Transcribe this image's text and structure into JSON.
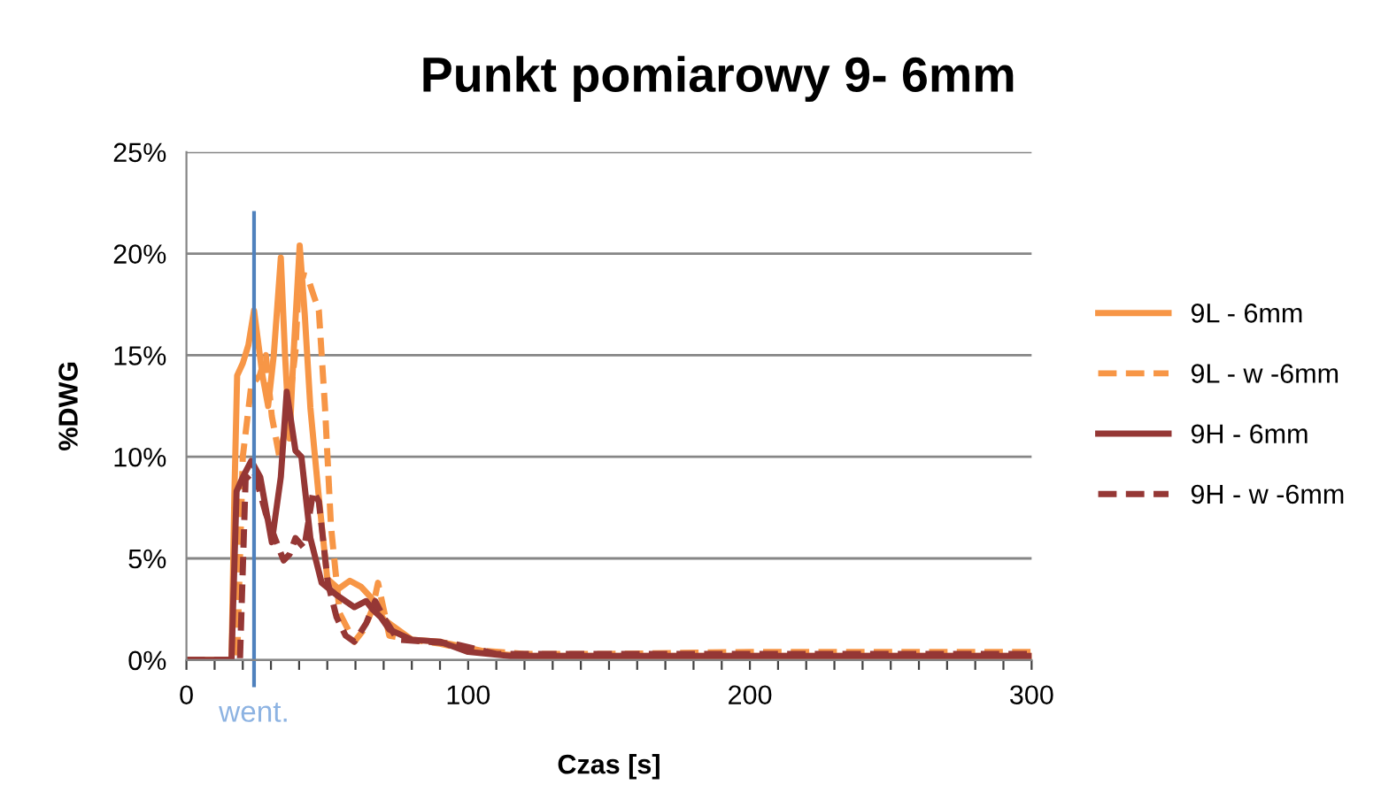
{
  "chart_data": {
    "type": "line",
    "title": "Punkt pomiarowy 9- 6mm",
    "xlabel": "Czas [s]",
    "ylabel": "%DWG",
    "xlim": [
      0,
      300
    ],
    "xticks": [
      0,
      {
        "value": 10,
        "label": null
      },
      {
        "value": 20,
        "label": null
      },
      {
        "value": 30,
        "label": null
      },
      {
        "value": 40,
        "label": null
      },
      {
        "value": 50,
        "label": null
      },
      {
        "value": 60,
        "label": null
      },
      {
        "value": 70,
        "label": null
      },
      {
        "value": 80,
        "label": null
      },
      {
        "value": 90,
        "label": null
      },
      100,
      {
        "value": 110,
        "label": null
      },
      {
        "value": 120,
        "label": null
      },
      {
        "value": 130,
        "label": null
      },
      {
        "value": 140,
        "label": null
      },
      {
        "value": 150,
        "label": null
      },
      {
        "value": 160,
        "label": null
      },
      {
        "value": 170,
        "label": null
      },
      {
        "value": 180,
        "label": null
      },
      {
        "value": 190,
        "label": null
      },
      200,
      {
        "value": 210,
        "label": null
      },
      {
        "value": 220,
        "label": null
      },
      {
        "value": 230,
        "label": null
      },
      {
        "value": 240,
        "label": null
      },
      {
        "value": 250,
        "label": null
      },
      {
        "value": 260,
        "label": null
      },
      {
        "value": 270,
        "label": null
      },
      {
        "value": 280,
        "label": null
      },
      {
        "value": 290,
        "label": null
      },
      300
    ],
    "ylim": [
      0,
      25
    ],
    "yticks": [
      {
        "value": 0,
        "label": "0%"
      },
      {
        "value": 5,
        "label": "5%"
      },
      {
        "value": 10,
        "label": "10%"
      },
      {
        "value": 15,
        "label": "15%"
      },
      {
        "value": 20,
        "label": "20%"
      },
      {
        "value": 25,
        "label": "25%"
      }
    ],
    "grid": "y",
    "legend": "right",
    "marker": "none",
    "ref_lines": [
      {
        "axis": "x",
        "value": 24,
        "label": "went.",
        "color": "#4f81bd"
      }
    ],
    "series": [
      {
        "name": "9L - 6mm",
        "color": "#f79646",
        "line_style": "solid",
        "x": [
          0,
          16,
          17,
          18,
          20,
          22,
          24,
          27,
          29,
          31,
          33.5,
          35,
          36.6,
          38,
          40.2,
          42,
          44,
          47,
          50,
          54,
          58,
          62,
          66,
          70,
          75,
          80,
          90,
          100,
          110,
          120,
          150,
          200,
          250,
          300
        ],
        "values": [
          0,
          0,
          8,
          14,
          14.6,
          15.5,
          17.2,
          14,
          12.5,
          15,
          19.8,
          15,
          10.9,
          15,
          20.4,
          17,
          12.4,
          8,
          4,
          3.5,
          3.9,
          3.6,
          3,
          2,
          1.5,
          1,
          0.9,
          0.6,
          0.3,
          0.2,
          0.2,
          0.2,
          0.2,
          0.2
        ]
      },
      {
        "name": "9L - w -6mm",
        "color": "#f79646",
        "line_style": "dashed",
        "x": [
          0,
          18,
          20,
          23,
          26,
          28.2,
          30.3,
          33,
          36,
          38.7,
          40,
          42.9,
          45,
          47,
          49.2,
          51.3,
          54.4,
          59.6,
          63,
          66,
          68,
          72,
          80,
          90,
          100,
          120,
          150,
          200,
          250,
          300
        ],
        "values": [
          0,
          0,
          10,
          13.5,
          14,
          15,
          12,
          10,
          12,
          15.2,
          19,
          18.9,
          18,
          17.2,
          12.4,
          6.6,
          2.3,
          0.9,
          1.5,
          2.5,
          3.8,
          1.2,
          1,
          0.8,
          0.5,
          0.3,
          0.3,
          0.4,
          0.4,
          0.4
        ]
      },
      {
        "name": "9H - 6mm",
        "color": "#953735",
        "line_style": "solid",
        "x": [
          0,
          16,
          17.8,
          20,
          23,
          26.2,
          30.3,
          33.5,
          35.6,
          38.7,
          40.8,
          44,
          48,
          53.3,
          59.6,
          63.8,
          66,
          69,
          72,
          80,
          90,
          100,
          115,
          150,
          200,
          250,
          300
        ],
        "values": [
          0,
          0,
          8.3,
          9,
          9.8,
          9,
          5.8,
          9,
          13.2,
          10.3,
          10,
          6,
          3.8,
          3.2,
          2.6,
          2.9,
          2.5,
          2.1,
          1.5,
          1,
          0.9,
          0.4,
          0.2,
          0.2,
          0.2,
          0.2,
          0.2
        ]
      },
      {
        "name": "9H - w -6mm",
        "color": "#953735",
        "line_style": "dashed",
        "x": [
          0,
          19,
          21,
          24,
          28.2,
          31.4,
          34.5,
          36.6,
          38.7,
          41.8,
          45,
          47,
          50.2,
          53.3,
          56.5,
          59.6,
          63.8,
          67,
          70,
          75,
          85,
          95,
          110,
          150,
          200,
          250,
          300
        ],
        "values": [
          0,
          0,
          8.9,
          9.3,
          7.2,
          6,
          4.9,
          5.2,
          6,
          5.5,
          8.3,
          7.8,
          3.8,
          2.1,
          1.2,
          0.9,
          1.8,
          2.9,
          2.1,
          1,
          0.9,
          0.8,
          0.3,
          0.3,
          0.3,
          0.3,
          0.3
        ]
      }
    ]
  }
}
